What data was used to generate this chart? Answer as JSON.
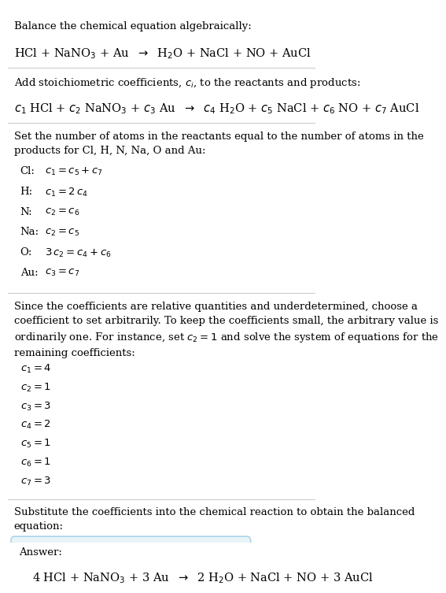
{
  "bg_color": "#ffffff",
  "text_color": "#000000",
  "section1_title": "Balance the chemical equation algebraically:",
  "section1_eq": "HCl + NaNO$_3$ + Au  $\\rightarrow$  H$_2$O + NaCl + NO + AuCl",
  "section2_title": "Add stoichiometric coefficients, $c_i$, to the reactants and products:",
  "section2_eq": "$c_1$ HCl + $c_2$ NaNO$_3$ + $c_3$ Au  $\\rightarrow$  $c_4$ H$_2$O + $c_5$ NaCl + $c_6$ NO + $c_7$ AuCl",
  "section3_title": "Set the number of atoms in the reactants equal to the number of atoms in the\nproducts for Cl, H, N, Na, O and Au:",
  "section3_equations": [
    [
      "Cl:",
      "$c_1 = c_5 + c_7$"
    ],
    [
      "H:",
      "$c_1 = 2\\,c_4$"
    ],
    [
      "N:",
      "$c_2 = c_6$"
    ],
    [
      "Na:",
      "$c_2 = c_5$"
    ],
    [
      "O:",
      "$3\\,c_2 = c_4 + c_6$"
    ],
    [
      "Au:",
      "$c_3 = c_7$"
    ]
  ],
  "section4_text": "Since the coefficients are relative quantities and underdetermined, choose a\ncoefficient to set arbitrarily. To keep the coefficients small, the arbitrary value is\nordinarily one. For instance, set $c_2 = 1$ and solve the system of equations for the\nremaining coefficients:",
  "section4_coeffs": [
    "$c_1 = 4$",
    "$c_2 = 1$",
    "$c_3 = 3$",
    "$c_4 = 2$",
    "$c_5 = 1$",
    "$c_6 = 1$",
    "$c_7 = 3$"
  ],
  "section5_title": "Substitute the coefficients into the chemical reaction to obtain the balanced\nequation:",
  "answer_label": "Answer:",
  "answer_eq": "4 HCl + NaNO$_3$ + 3 Au  $\\rightarrow$  2 H$_2$O + NaCl + NO + 3 AuCl",
  "answer_box_color": "#e8f4f8",
  "answer_box_border": "#aad4e8"
}
